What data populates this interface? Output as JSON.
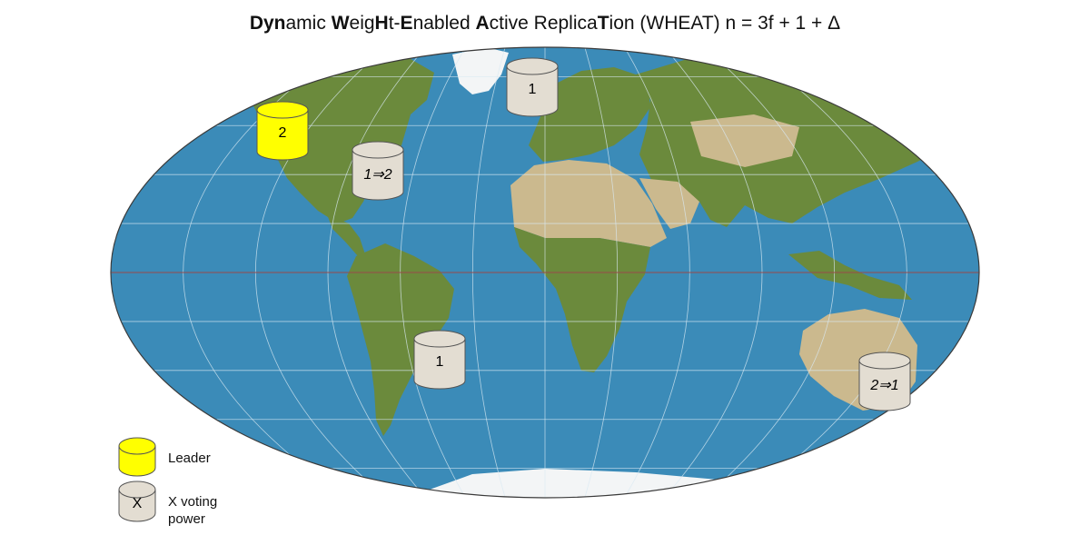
{
  "title": {
    "segments": [
      {
        "text": "Dyn",
        "bold": true
      },
      {
        "text": "amic ",
        "bold": false
      },
      {
        "text": "W",
        "bold": true
      },
      {
        "text": "eig",
        "bold": false
      },
      {
        "text": "H",
        "bold": true
      },
      {
        "text": "t-",
        "bold": false
      },
      {
        "text": "E",
        "bold": true
      },
      {
        "text": "nabled ",
        "bold": false
      },
      {
        "text": "A",
        "bold": true
      },
      {
        "text": "ctive Replica",
        "bold": false
      },
      {
        "text": "T",
        "bold": true
      },
      {
        "text": "ion (WHEAT) n = 3f + 1 + Δ",
        "bold": false
      }
    ]
  },
  "colors": {
    "ocean": "#3b8bb8",
    "land_green": "#6b8a3c",
    "land_desert": "#cbb98e",
    "ice": "#f3f5f6",
    "grid": "#d9e9f3",
    "equator": "#9a4a4a",
    "leader": "#ffff00",
    "replica": "#e3ddd2",
    "outline": "#555555"
  },
  "replicas": [
    {
      "name": "north-america-west",
      "label": "2",
      "role": "leader",
      "italic": false
    },
    {
      "name": "north-america-east",
      "label": "1⇒2",
      "role": "replica",
      "italic": true
    },
    {
      "name": "europe",
      "label": "1",
      "role": "replica",
      "italic": false
    },
    {
      "name": "south-america",
      "label": "1",
      "role": "replica",
      "italic": false
    },
    {
      "name": "australia",
      "label": "2⇒1",
      "role": "replica",
      "italic": true
    }
  ],
  "legend": {
    "leader_text": "Leader",
    "voting_symbol": "X",
    "voting_text": "X voting\npower"
  }
}
